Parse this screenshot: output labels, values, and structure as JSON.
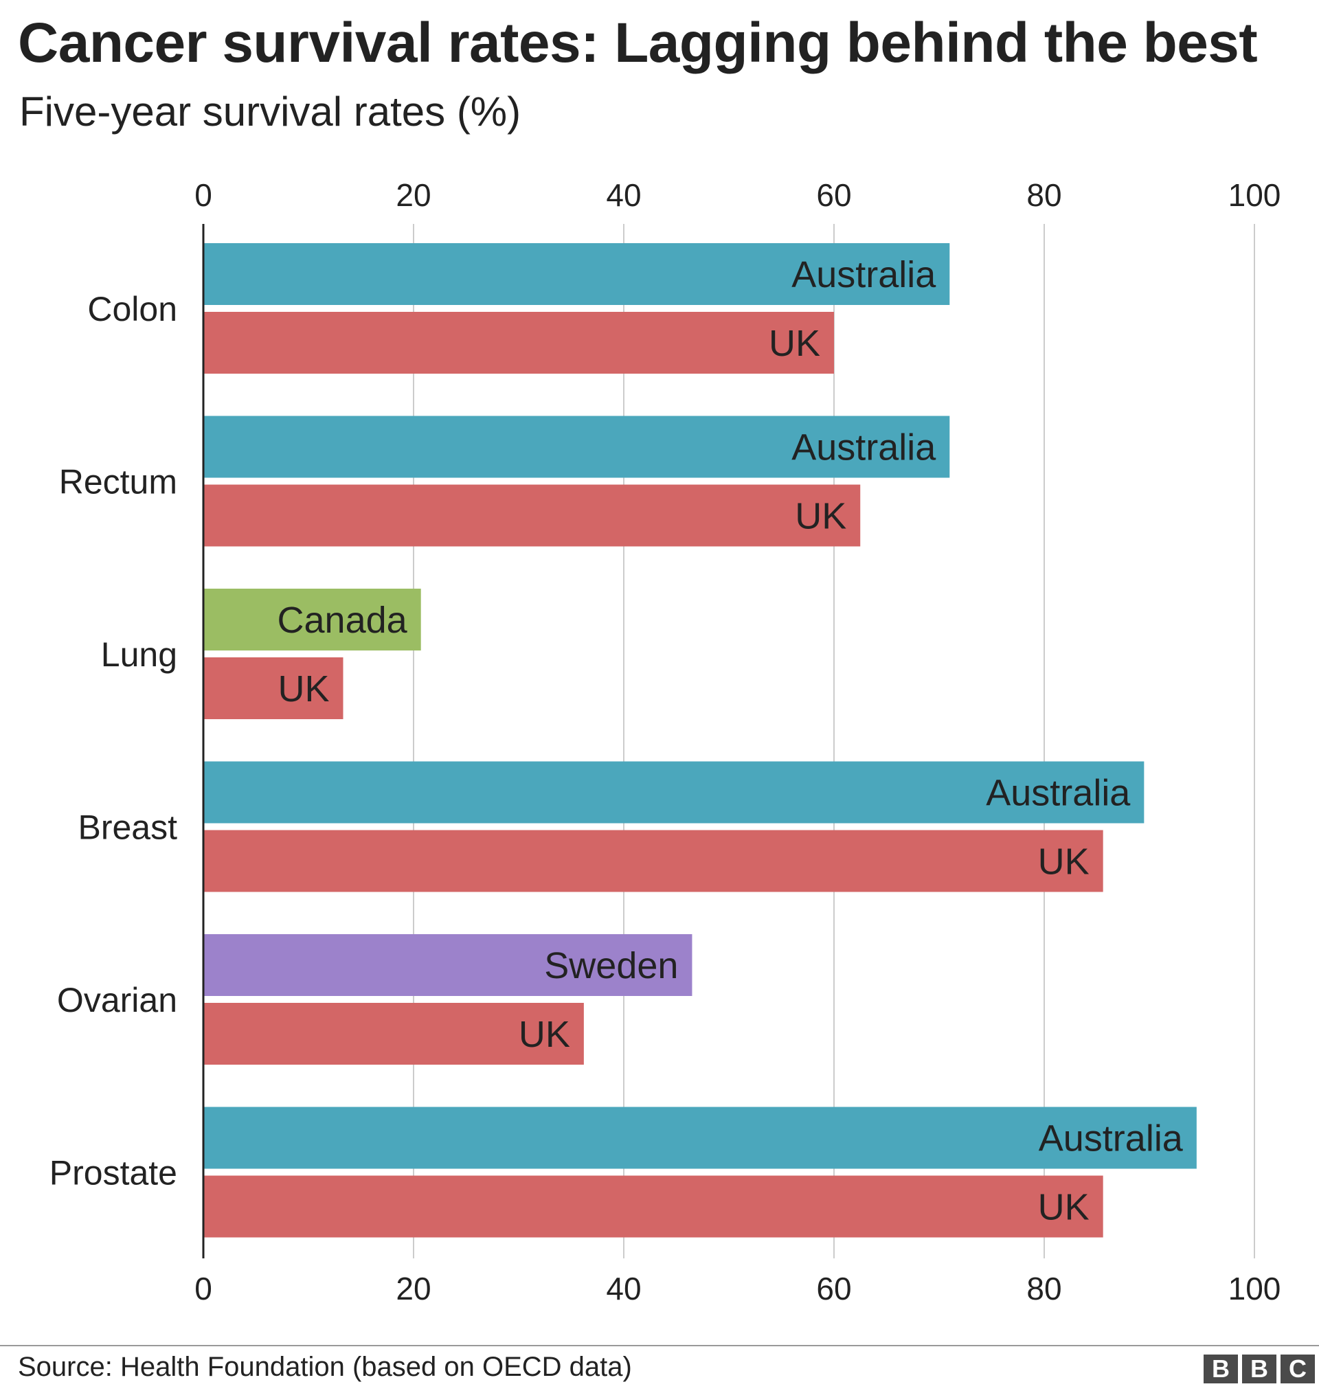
{
  "header": {
    "title": "Cancer survival rates: Lagging behind the best",
    "subtitle": "Five-year survival rates (%)"
  },
  "footer": {
    "source": "Source: Health Foundation (based on OECD data)",
    "logo_letters": [
      "B",
      "B",
      "C"
    ]
  },
  "colors": {
    "Australia": "#4ba7bc",
    "UK": "#d36666",
    "Canada": "#9bbd63",
    "Sweden": "#9c82cb",
    "grid": "#cccccc",
    "axis": "#222222"
  },
  "chart_data": {
    "type": "bar",
    "orientation": "horizontal",
    "title": "Cancer survival rates: Lagging behind the best",
    "subtitle": "Five-year survival rates (%)",
    "xlim": [
      0,
      100
    ],
    "x_ticks": [
      0,
      20,
      40,
      60,
      80,
      100
    ],
    "x_axis_labels_position": "top and bottom",
    "grid": true,
    "legend": "none (labels inside bars)",
    "categories": [
      {
        "name": "Colon",
        "bars": [
          {
            "country": "Australia",
            "value": 71
          },
          {
            "country": "UK",
            "value": 60
          }
        ]
      },
      {
        "name": "Rectum",
        "bars": [
          {
            "country": "Australia",
            "value": 71
          },
          {
            "country": "UK",
            "value": 62.5
          }
        ]
      },
      {
        "name": "Lung",
        "bars": [
          {
            "country": "Canada",
            "value": 20.7
          },
          {
            "country": "UK",
            "value": 13.3
          }
        ]
      },
      {
        "name": "Breast",
        "bars": [
          {
            "country": "Australia",
            "value": 89.5
          },
          {
            "country": "UK",
            "value": 85.6
          }
        ]
      },
      {
        "name": "Ovarian",
        "bars": [
          {
            "country": "Sweden",
            "value": 46.5
          },
          {
            "country": "UK",
            "value": 36.2
          }
        ]
      },
      {
        "name": "Prostate",
        "bars": [
          {
            "country": "Australia",
            "value": 94.5
          },
          {
            "country": "UK",
            "value": 85.6
          }
        ]
      }
    ]
  }
}
